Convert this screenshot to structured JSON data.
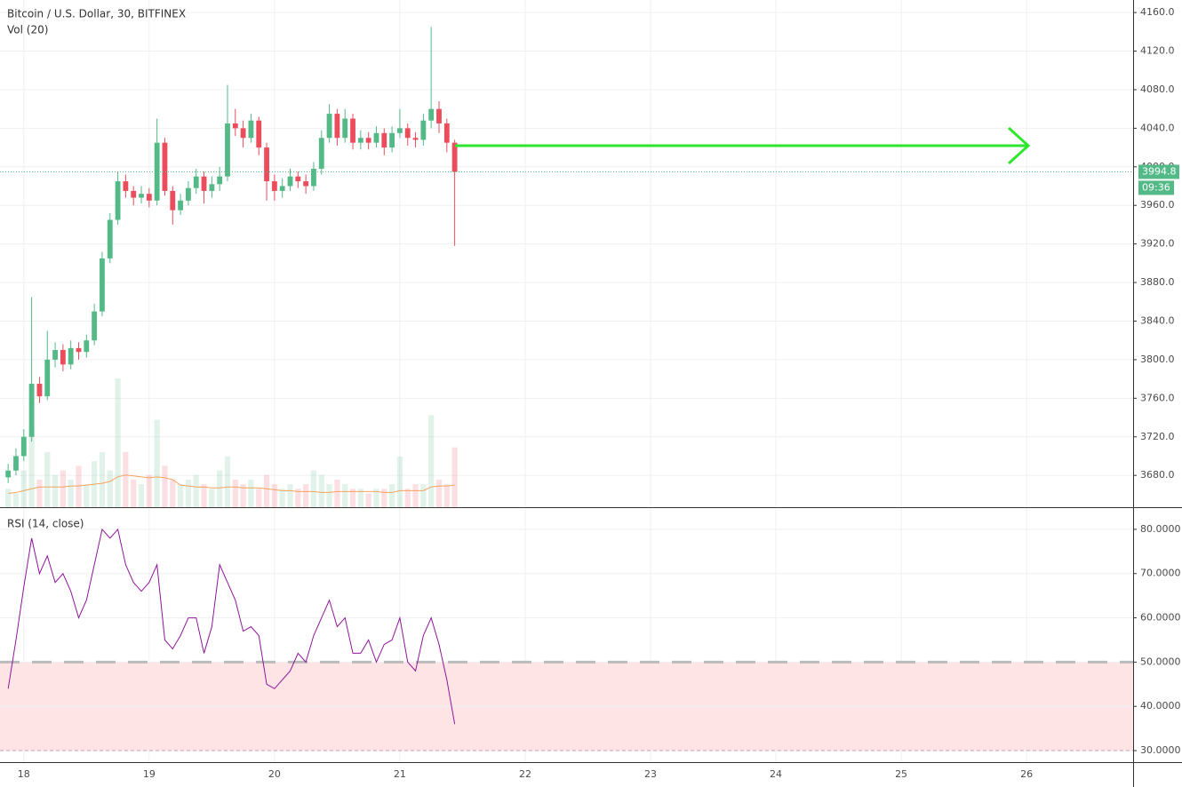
{
  "chart_data": {
    "type": "candlestick",
    "title": "Bitcoin / U.S. Dollar, 30, BITFINEX",
    "volume_label": "Vol (20)",
    "x": [
      17.875,
      17.9375,
      18,
      18.0625,
      18.125,
      18.1875,
      18.25,
      18.3125,
      18.375,
      18.4375,
      18.5,
      18.5625,
      18.625,
      18.6875,
      18.75,
      18.8125,
      18.875,
      18.9375,
      19,
      19.0625,
      19.125,
      19.1875,
      19.25,
      19.3125,
      19.375,
      19.4375,
      19.5,
      19.5625,
      19.625,
      19.6875,
      19.75,
      19.8125,
      19.875,
      19.9375,
      20,
      20.0625,
      20.125,
      20.1875,
      20.25,
      20.3125,
      20.375,
      20.4375,
      20.5,
      20.5625,
      20.625,
      20.6875,
      20.75,
      20.8125,
      20.875,
      20.9375,
      21,
      21.0625,
      21.125,
      21.1875,
      21.25,
      21.3125,
      21.375,
      21.4375
    ],
    "open": [
      3678,
      3685,
      3700,
      3720,
      3775,
      3762,
      3800,
      3810,
      3795,
      3812,
      3808,
      3820,
      3850,
      3905,
      3945,
      3985,
      3975,
      3968,
      3972,
      3965,
      4025,
      3975,
      3955,
      3965,
      3978,
      3990,
      3975,
      3982,
      3990,
      4045,
      4040,
      4030,
      4048,
      4020,
      3985,
      3975,
      3980,
      3990,
      3985,
      3980,
      3998,
      4030,
      4055,
      4030,
      4050,
      4025,
      4030,
      4025,
      4035,
      4020,
      4035,
      4040,
      4030,
      4028,
      4048,
      4060,
      4045,
      4025
    ],
    "high": [
      3692,
      3708,
      3728,
      3865,
      3782,
      3830,
      3818,
      3816,
      3820,
      3818,
      3826,
      3858,
      3912,
      3952,
      3995,
      3992,
      3980,
      3980,
      3978,
      4050,
      4030,
      3980,
      3972,
      3985,
      3998,
      3995,
      3990,
      4000,
      4085,
      4060,
      4048,
      4055,
      4052,
      4025,
      3992,
      3988,
      3998,
      3995,
      3992,
      4005,
      4038,
      4065,
      4060,
      4060,
      4055,
      4038,
      4036,
      4042,
      4040,
      4042,
      4060,
      4045,
      4036,
      4055,
      4145,
      4068,
      4050,
      4028
    ],
    "low": [
      3672,
      3680,
      3695,
      3715,
      3755,
      3758,
      3792,
      3788,
      3790,
      3800,
      3802,
      3815,
      3845,
      3900,
      3940,
      3968,
      3960,
      3962,
      3958,
      3960,
      3970,
      3940,
      3950,
      3960,
      3972,
      3962,
      3968,
      3975,
      3985,
      4032,
      4020,
      4025,
      4012,
      3965,
      3965,
      3968,
      3975,
      3978,
      3972,
      3975,
      3992,
      4025,
      4022,
      4025,
      4018,
      4018,
      4018,
      4020,
      4012,
      4015,
      4030,
      4022,
      4020,
      4022,
      4040,
      4035,
      4015,
      3918
    ],
    "close": [
      3685,
      3700,
      3720,
      3775,
      3762,
      3800,
      3810,
      3795,
      3812,
      3808,
      3820,
      3850,
      3905,
      3945,
      3985,
      3975,
      3968,
      3972,
      3965,
      4025,
      3975,
      3955,
      3965,
      3978,
      3990,
      3975,
      3982,
      3990,
      4045,
      4040,
      4030,
      4048,
      4020,
      3985,
      3975,
      3980,
      3990,
      3985,
      3980,
      3998,
      4030,
      4055,
      4030,
      4050,
      4025,
      4030,
      4025,
      4035,
      4020,
      4035,
      4040,
      4030,
      4028,
      4048,
      4060,
      4045,
      4025,
      3994.8
    ],
    "volume": [
      20,
      15,
      40,
      85,
      30,
      60,
      35,
      40,
      30,
      45,
      25,
      50,
      60,
      40,
      140,
      60,
      30,
      25,
      35,
      95,
      45,
      30,
      25,
      30,
      35,
      25,
      20,
      40,
      55,
      30,
      25,
      30,
      20,
      35,
      25,
      20,
      25,
      20,
      25,
      40,
      35,
      25,
      30,
      25,
      20,
      20,
      15,
      20,
      20,
      25,
      55,
      20,
      25,
      25,
      100,
      30,
      25,
      65
    ],
    "volume_ma": [
      15,
      16,
      18,
      20,
      22,
      22,
      22,
      22,
      23,
      23,
      24,
      25,
      26,
      28,
      33,
      35,
      34,
      33,
      32,
      33,
      32,
      30,
      24,
      23,
      22,
      22,
      21,
      21,
      22,
      22,
      21,
      21,
      21,
      20,
      19,
      18,
      18,
      17,
      17,
      17,
      16,
      16,
      17,
      17,
      17,
      17,
      17,
      17,
      16,
      16,
      18,
      18,
      18,
      18,
      22,
      23,
      23,
      24
    ],
    "up_color": "#53b987",
    "down_color": "#eb4d5c",
    "volume_ma_color": "#f7a35c",
    "xlim": [
      17.81,
      26.85
    ],
    "xticks": [
      18,
      19,
      20,
      21,
      22,
      23,
      24,
      25,
      26
    ],
    "ylim": [
      3647,
      4173
    ],
    "yticks": [
      {
        "value": 3680,
        "label": "3680.0"
      },
      {
        "value": 3720,
        "label": "3720.0"
      },
      {
        "value": 3760,
        "label": "3760.0"
      },
      {
        "value": 3800,
        "label": "3800.0"
      },
      {
        "value": 3840,
        "label": "3840.0"
      },
      {
        "value": 3880,
        "label": "3880.0"
      },
      {
        "value": 3920,
        "label": "3920.0"
      },
      {
        "value": 3960,
        "label": "3960.0"
      },
      {
        "value": 4000,
        "label": "4000.0"
      },
      {
        "value": 4040,
        "label": "4040.0"
      },
      {
        "value": 4080,
        "label": "4080.0"
      },
      {
        "value": 4120,
        "label": "4120.0"
      },
      {
        "value": 4160,
        "label": "4160.0"
      }
    ],
    "last_price": 3994.8,
    "countdown": "09:36",
    "grid": true,
    "rsi": {
      "title": "RSI (14, close)",
      "color": "#8e1599",
      "values": [
        44,
        55,
        67,
        78,
        70,
        74,
        68,
        70,
        66,
        60,
        64,
        72,
        80,
        78,
        80,
        72,
        68,
        66,
        68,
        72,
        55,
        53,
        56,
        60,
        60,
        52,
        58,
        72,
        68,
        64,
        57,
        58,
        56,
        45,
        44,
        46,
        48,
        52,
        50,
        56,
        60,
        64,
        58,
        60,
        52,
        52,
        55,
        50,
        54,
        55,
        60,
        50,
        48,
        56,
        60,
        54,
        46,
        36
      ],
      "ylim": [
        27.4,
        84.8
      ],
      "yticks": [
        {
          "value": 30,
          "label": "30.0000"
        },
        {
          "value": 40,
          "label": "40.0000"
        },
        {
          "value": 50,
          "label": "50.0000"
        },
        {
          "value": 60,
          "label": "60.0000"
        },
        {
          "value": 70,
          "label": "70.0000"
        },
        {
          "value": 80,
          "label": "80.0000"
        }
      ],
      "band": [
        30,
        50
      ]
    }
  }
}
